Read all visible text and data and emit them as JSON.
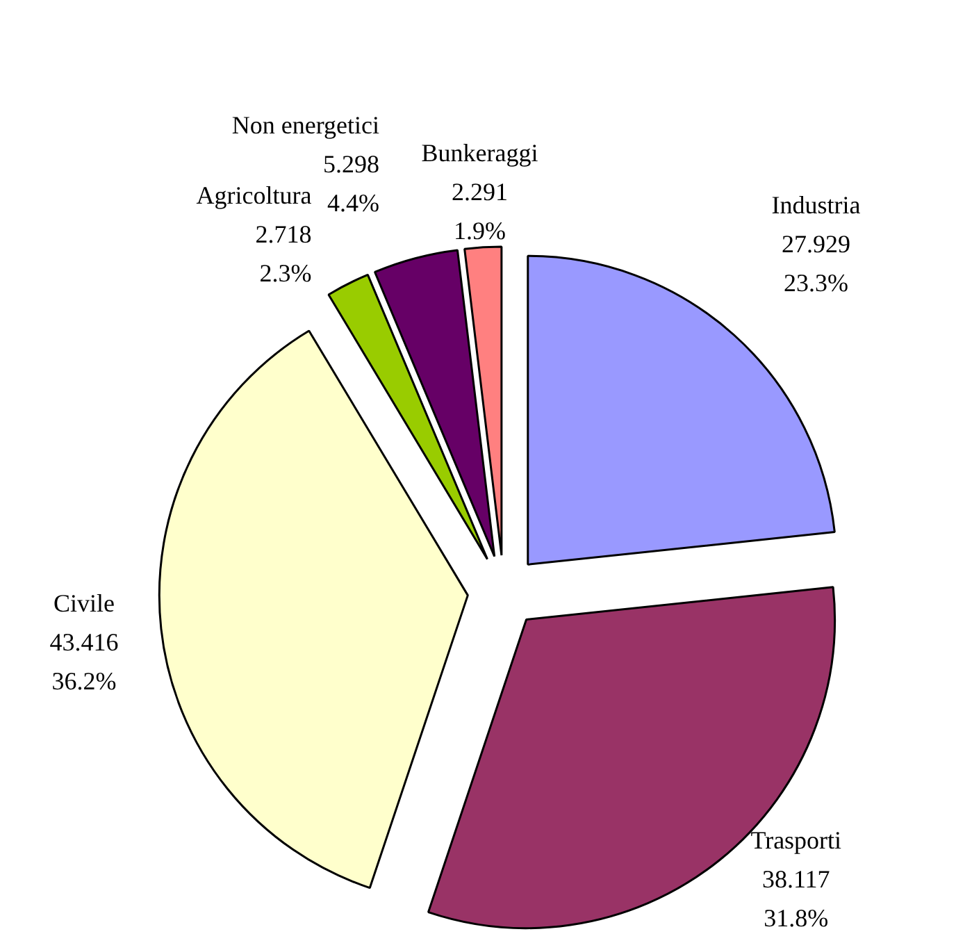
{
  "chart_data": {
    "type": "pie",
    "categories": [
      "Industria",
      "Trasporti",
      "Civile",
      "Agricoltura",
      "Non energetici",
      "Bunkeraggi"
    ],
    "values": [
      27.929,
      38.117,
      43.416,
      2.718,
      5.298,
      2.291
    ],
    "value_labels": [
      "27.929\n23.3%",
      "38.117\n31.8%",
      "43.416\n36.2%",
      "2.718\n2.3%",
      "5.298\n4.4%",
      "2.291\n1.9%"
    ],
    "colors": [
      "#9999ff",
      "#993366",
      "#ffffcc",
      "#99cc00",
      "#660066",
      "#ff8080"
    ]
  }
}
